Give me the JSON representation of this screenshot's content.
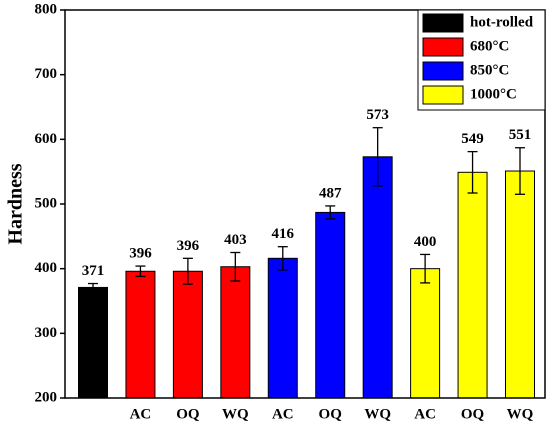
{
  "chart_data": {
    "type": "bar",
    "y_label": "Hardness",
    "categories": [
      null,
      "AC",
      "OQ",
      "WQ",
      "AC",
      "OQ",
      "WQ",
      "AC",
      "OQ",
      "WQ"
    ],
    "series": [
      {
        "name": "hot-rolled",
        "color": "#000000",
        "values": [
          371,
          null,
          null,
          null,
          null,
          null,
          null,
          null,
          null,
          null
        ],
        "errors": [
          6,
          null,
          null,
          null,
          null,
          null,
          null,
          null,
          null,
          null
        ]
      },
      {
        "name": "680°C",
        "color": "#ff0000",
        "values": [
          null,
          396,
          396,
          403,
          null,
          null,
          null,
          null,
          null,
          null
        ],
        "errors": [
          null,
          8,
          20,
          22,
          null,
          null,
          null,
          null,
          null,
          null
        ]
      },
      {
        "name": "850°C",
        "color": "#0000ff",
        "values": [
          null,
          null,
          null,
          null,
          416,
          487,
          573,
          null,
          null,
          null
        ],
        "errors": [
          null,
          null,
          null,
          null,
          18,
          10,
          45,
          null,
          null,
          null
        ]
      },
      {
        "name": "1000°C",
        "color": "#ffff00",
        "values": [
          null,
          null,
          null,
          null,
          null,
          null,
          null,
          400,
          549,
          551
        ],
        "errors": [
          null,
          null,
          null,
          null,
          null,
          null,
          null,
          22,
          32,
          36
        ]
      }
    ],
    "ylim": [
      200,
      800
    ],
    "yticks": [
      200,
      300,
      400,
      500,
      600,
      700,
      800
    ],
    "legend": "upper right"
  }
}
